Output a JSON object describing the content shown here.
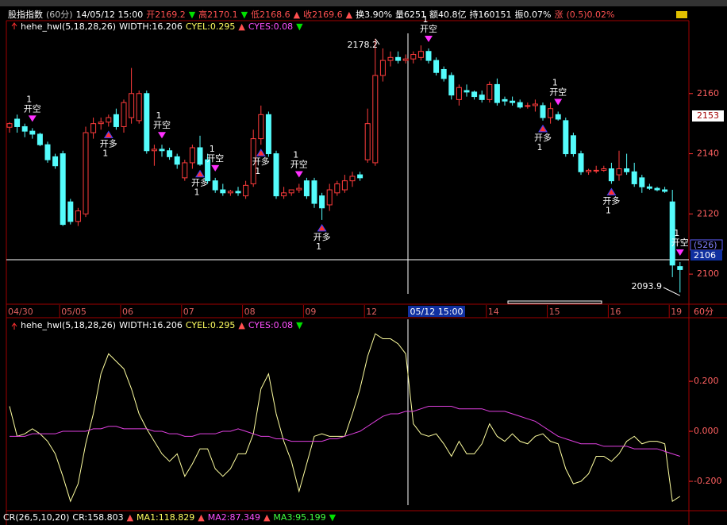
{
  "header": {
    "items": [
      {
        "text": "股指指数",
        "color": "#ffffff"
      },
      {
        "text": "(60分)",
        "color": "#c0c0c0"
      },
      {
        "text": "14/05/12 15:00",
        "color": "#ffffff"
      },
      {
        "text": "开2169.2",
        "color": "#ff5050"
      },
      {
        "text": "▼",
        "color": "#00e000"
      },
      {
        "text": "高2170.1",
        "color": "#ff5050"
      },
      {
        "text": "▼",
        "color": "#00e000"
      },
      {
        "text": "低2168.6",
        "color": "#ff5050"
      },
      {
        "text": "▲",
        "color": "#ff5050"
      },
      {
        "text": "收2169.6",
        "color": "#ff5050"
      },
      {
        "text": "▲",
        "color": "#ff5050"
      },
      {
        "text": "换3.90%",
        "color": "#ffffff"
      },
      {
        "text": "量6251",
        "color": "#ffffff"
      },
      {
        "text": "额40.8亿",
        "color": "#ffffff"
      },
      {
        "text": "持160151",
        "color": "#ffffff"
      },
      {
        "text": "振0.07%",
        "color": "#ffffff"
      },
      {
        "text": "涨",
        "color": "#ff5050"
      },
      {
        "text": "(0.5)0.02%",
        "color": "#ff5050"
      }
    ]
  },
  "chart_data": [
    {
      "type": "candlestick",
      "legend": [
        {
          "text": "hehe_hwl(5,18,28,26)",
          "color": "#ffffff"
        },
        {
          "text": "WIDTH:16.206",
          "color": "#ffffff"
        },
        {
          "text": "CYEL:0.295",
          "color": "#ffff60"
        },
        {
          "text": "▲",
          "color": "#ff5050"
        },
        {
          "text": "CYES:0.08",
          "color": "#ff50ff"
        },
        {
          "text": "▼",
          "color": "#00e000"
        }
      ],
      "categories": [
        "04/30",
        null,
        null,
        null,
        null,
        null,
        null,
        "05/05",
        null,
        null,
        null,
        null,
        null,
        null,
        null,
        "06",
        null,
        null,
        null,
        null,
        null,
        null,
        null,
        "07",
        null,
        null,
        null,
        null,
        null,
        null,
        null,
        "08",
        null,
        null,
        null,
        null,
        null,
        null,
        null,
        "09",
        null,
        null,
        null,
        null,
        null,
        null,
        null,
        "12",
        null,
        null,
        null,
        null,
        null,
        null,
        null,
        null,
        null,
        null,
        null,
        null,
        null,
        null,
        null,
        "14",
        null,
        null,
        null,
        null,
        null,
        null,
        null,
        "15",
        null,
        null,
        null,
        null,
        null,
        null,
        null,
        "16",
        null,
        null,
        null,
        null,
        null,
        null,
        null,
        "19",
        null
      ],
      "open": [
        2148.8,
        2151.5,
        2149,
        2147.5,
        2146.5,
        2143,
        2139,
        2140,
        2124,
        2117.5,
        2120,
        2147,
        2150,
        2150.5,
        2153,
        2149,
        2152,
        2151,
        2160,
        2141,
        2141.5,
        2141,
        2139,
        2132,
        2137,
        2142,
        2138,
        2131,
        2128,
        2127,
        2127.5,
        2126,
        2130,
        2145,
        2153,
        2140,
        2126,
        2127,
        2128,
        2131,
        2131,
        2126,
        2123,
        2127,
        2128,
        2131,
        2133,
        2138,
        2137,
        2166,
        2171,
        2172,
        2171,
        2171.5,
        2172,
        2174,
        2171,
        2168,
        2166,
        2158,
        2161,
        2160.5,
        2159.5,
        2158,
        2163,
        2158,
        2157.5,
        2157,
        2156,
        2156,
        2156,
        2152,
        2153,
        2151,
        2146,
        2140,
        2134,
        2134.5,
        2134.5,
        2135,
        2133,
        2135,
        2134,
        2132,
        2129,
        2128.5,
        2128,
        2124,
        2102.5
      ],
      "high": [
        2150.5,
        2153,
        2150,
        2148.5,
        2147,
        2144,
        2140,
        2141,
        2125,
        2122,
        2149,
        2152,
        2152,
        2153,
        2155,
        2158,
        2168.5,
        2161,
        2161,
        2143,
        2143,
        2142,
        2140,
        2138,
        2143,
        2146,
        2140,
        2132,
        2130,
        2128,
        2129,
        2131,
        2148,
        2156,
        2154,
        2141,
        2129,
        2128,
        2130,
        2132,
        2132,
        2127,
        2130,
        2131,
        2133,
        2134,
        2134,
        2155,
        2178.2,
        2175,
        2174,
        2174,
        2173,
        2174,
        2176,
        2175,
        2172,
        2169,
        2167,
        2163,
        2163,
        2161,
        2161,
        2164,
        2165,
        2159,
        2159,
        2158,
        2157,
        2158,
        2157,
        2157,
        2154,
        2152,
        2147,
        2141,
        2135,
        2136,
        2136,
        2137,
        2141,
        2140,
        2137,
        2133,
        2130,
        2129,
        2129,
        2128,
        2104
      ],
      "low": [
        2147,
        2147,
        2145.5,
        2145,
        2142.5,
        2137,
        2135,
        2116,
        2116.5,
        2116,
        2119,
        2145,
        2148,
        2149,
        2148,
        2147,
        2150,
        2150,
        2140,
        2136,
        2139,
        2138,
        2135,
        2131,
        2135,
        2136,
        2130,
        2127,
        2126,
        2126,
        2126,
        2125,
        2129,
        2143,
        2139,
        2125,
        2125,
        2126,
        2127,
        2125,
        2122,
        2118,
        2121,
        2126,
        2127,
        2129,
        2131,
        2137,
        2136,
        2164,
        2169,
        2170,
        2170,
        2170,
        2171,
        2170,
        2166,
        2164,
        2158,
        2156,
        2159,
        2158,
        2157,
        2157,
        2156,
        2156,
        2156,
        2155,
        2155,
        2154,
        2151,
        2150,
        2151,
        2139,
        2139,
        2133,
        2133,
        2133.5,
        2134,
        2130,
        2131,
        2133,
        2129,
        2127,
        2128,
        2127.5,
        2127,
        2099,
        2093.9
      ],
      "close": [
        2150,
        2149,
        2147.5,
        2146.5,
        2143,
        2138,
        2136,
        2116.5,
        2117.5,
        2121,
        2147,
        2150,
        2150.5,
        2152,
        2149,
        2157,
        2160,
        2160,
        2141,
        2141.5,
        2141,
        2139,
        2136.5,
        2137,
        2142,
        2136.5,
        2131,
        2128,
        2127,
        2127.5,
        2127,
        2129.5,
        2145,
        2153,
        2140,
        2126,
        2127,
        2128,
        2128.5,
        2126,
        2123.5,
        2122,
        2128,
        2130,
        2131,
        2132.5,
        2132,
        2150,
        2166,
        2171,
        2172,
        2171,
        2171.5,
        2173,
        2174,
        2171,
        2167,
        2165,
        2159.5,
        2162,
        2160.5,
        2159,
        2158,
        2163,
        2157,
        2157.5,
        2157,
        2155.5,
        2156,
        2156.5,
        2152,
        2155,
        2151.5,
        2140,
        2140,
        2134,
        2134.5,
        2134.5,
        2135,
        2131,
        2135,
        2134,
        2130,
        2129,
        2128.5,
        2128,
        2127.5,
        2103,
        2101.5
      ],
      "up_color": "#ff3c3c",
      "down_color": "#54fcfc",
      "ylim": [
        2090,
        2180
      ],
      "yticks": [
        2100,
        2120,
        2140,
        2160
      ],
      "signals": [
        null,
        null,
        null,
        "开空",
        null,
        null,
        null,
        null,
        null,
        null,
        null,
        null,
        null,
        "开多",
        null,
        null,
        null,
        null,
        null,
        null,
        "开空",
        null,
        null,
        null,
        null,
        "开多",
        null,
        "开空",
        null,
        null,
        null,
        null,
        null,
        "开多",
        null,
        null,
        null,
        null,
        "开空",
        null,
        null,
        "开多",
        null,
        null,
        null,
        null,
        null,
        null,
        null,
        null,
        null,
        null,
        null,
        null,
        null,
        "开空",
        null,
        null,
        null,
        null,
        null,
        null,
        null,
        null,
        null,
        null,
        null,
        null,
        null,
        null,
        "开多",
        null,
        "开空",
        null,
        null,
        null,
        null,
        null,
        null,
        "开多",
        null,
        null,
        null,
        null,
        null,
        null,
        null,
        null,
        "开空"
      ],
      "signal_qty": "1",
      "high_label": "2178.2",
      "low_label": "2093.9",
      "cursor_time": "05/12 15:00",
      "cursor_price": "2106",
      "cursor_count": "(526)",
      "last_price": "2153",
      "period": "60分"
    },
    {
      "type": "line",
      "legend": [
        {
          "text": "hehe_hwl(5,18,28,26)",
          "color": "#ffffff"
        },
        {
          "text": "WIDTH:16.206",
          "color": "#ffffff"
        },
        {
          "text": "CYEL:0.295",
          "color": "#ffff60"
        },
        {
          "text": "▲",
          "color": "#ff5050"
        },
        {
          "text": "CYES:0.08",
          "color": "#ff50ff"
        },
        {
          "text": "▼",
          "color": "#00e000"
        }
      ],
      "series": [
        {
          "color": "#ffffa0",
          "values": [
            0.1,
            -0.02,
            -0.01,
            0.01,
            -0.01,
            -0.04,
            -0.09,
            -0.18,
            -0.28,
            -0.21,
            -0.05,
            0.07,
            0.23,
            0.31,
            0.28,
            0.25,
            0.17,
            0.07,
            0.01,
            -0.04,
            -0.09,
            -0.12,
            -0.09,
            -0.18,
            -0.13,
            -0.07,
            -0.07,
            -0.15,
            -0.18,
            -0.15,
            -0.09,
            -0.09,
            -0.01,
            0.17,
            0.23,
            0.07,
            -0.04,
            -0.12,
            -0.24,
            -0.13,
            -0.02,
            -0.01,
            -0.02,
            -0.02,
            -0.02,
            0.07,
            0.17,
            0.3,
            0.39,
            0.37,
            0.37,
            0.35,
            0.31,
            0.03,
            -0.01,
            -0.02,
            -0.01,
            -0.05,
            -0.1,
            -0.04,
            -0.09,
            -0.09,
            -0.05,
            0.03,
            -0.02,
            -0.04,
            -0.01,
            -0.04,
            -0.05,
            -0.02,
            -0.01,
            -0.04,
            -0.05,
            -0.15,
            -0.21,
            -0.2,
            -0.17,
            -0.1,
            -0.1,
            -0.12,
            -0.09,
            -0.04,
            -0.02,
            -0.05,
            -0.04,
            -0.04,
            -0.05,
            -0.28,
            -0.26
          ]
        },
        {
          "color": "#e040e0",
          "values": [
            -0.02,
            -0.02,
            -0.02,
            -0.01,
            -0.01,
            -0.01,
            -0.01,
            0,
            0,
            0,
            0,
            0.01,
            0.01,
            0.02,
            0.02,
            0.01,
            0.01,
            0.01,
            0.01,
            0,
            0,
            -0.01,
            -0.01,
            -0.02,
            -0.02,
            -0.01,
            -0.01,
            -0.01,
            0,
            0,
            0.01,
            0,
            -0.01,
            -0.02,
            -0.02,
            -0.03,
            -0.03,
            -0.04,
            -0.04,
            -0.04,
            -0.04,
            -0.04,
            -0.03,
            -0.03,
            -0.02,
            -0.01,
            0,
            0.02,
            0.04,
            0.06,
            0.07,
            0.07,
            0.08,
            0.08,
            0.09,
            0.1,
            0.1,
            0.1,
            0.1,
            0.09,
            0.09,
            0.09,
            0.09,
            0.08,
            0.08,
            0.08,
            0.07,
            0.06,
            0.05,
            0.04,
            0.02,
            0,
            -0.02,
            -0.03,
            -0.04,
            -0.05,
            -0.05,
            -0.05,
            -0.06,
            -0.06,
            -0.06,
            -0.06,
            -0.07,
            -0.07,
            -0.07,
            -0.07,
            -0.08,
            -0.09,
            -0.1
          ]
        }
      ],
      "ylim": [
        -0.308,
        0.448
      ],
      "yticks": [
        {
          "value": 0.2,
          "label": "0.200"
        },
        {
          "value": 0,
          "label": "0.000"
        },
        {
          "value": -0.2,
          "label": "-0.200"
        }
      ]
    }
  ],
  "footer": {
    "items": [
      {
        "text": "CR(26,5,10,20)",
        "color": "#ffffff"
      },
      {
        "text": "CR:158.803",
        "color": "#ffffff"
      },
      {
        "text": "▲",
        "color": "#ff5050"
      },
      {
        "text": "MA1:118.829",
        "color": "#ffff60"
      },
      {
        "text": "▲",
        "color": "#ff5050"
      },
      {
        "text": "MA2:87.349",
        "color": "#ff50ff"
      },
      {
        "text": "▲",
        "color": "#ff5050"
      },
      {
        "text": "MA3:95.199",
        "color": "#40ff40"
      },
      {
        "text": "▼",
        "color": "#00e000"
      }
    ]
  }
}
